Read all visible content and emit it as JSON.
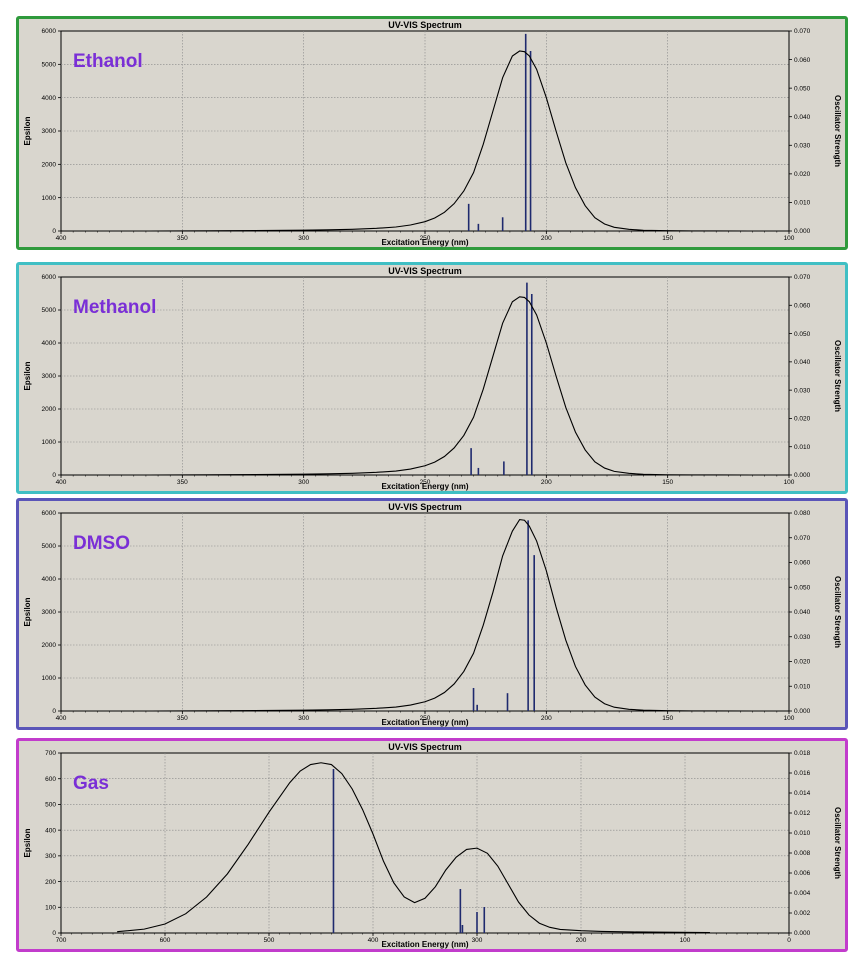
{
  "chart_data": [
    {
      "type": "line",
      "title": "UV-VIS Spectrum",
      "annotation": "Ethanol",
      "xlabel": "Excitation Energy (nm)",
      "ylabel": "Epsilon",
      "y2label": "Oscillator Strength",
      "xlim": [
        400,
        100
      ],
      "ylim": [
        0,
        6000
      ],
      "y2lim": [
        0,
        0.07
      ],
      "xticks": [
        "400",
        "350",
        "300",
        "250",
        "200",
        "150",
        "100"
      ],
      "yticks": [
        "0",
        "1000",
        "2000",
        "3000",
        "4000",
        "5000",
        "6000"
      ],
      "y2ticks": [
        "0.000",
        "0.010",
        "0.020",
        "0.030",
        "0.040",
        "0.050",
        "0.060",
        "0.070"
      ],
      "grid": true,
      "border_color": "#2f9a3c",
      "annotation_color": "#7a2fd6",
      "series": [
        {
          "x": [
            364.0,
            340.0,
            320.0,
            300.0,
            290.0,
            280.0,
            270.0,
            262.0,
            256.0,
            250.0,
            246.0,
            242.0,
            238.0,
            234.0,
            230.0,
            226.0,
            222.0,
            218.0,
            214.0,
            211.0,
            209.0,
            207.0,
            204.0,
            200.0,
            196.0,
            192.0,
            188.0,
            184.0,
            180.0,
            176.0,
            172.0,
            166.0,
            160.0,
            150.0,
            140.0,
            130.0,
            116.0
          ],
          "values": [
            0,
            5,
            12,
            25,
            35,
            50,
            80,
            120,
            180,
            280,
            390,
            560,
            820,
            1200,
            1750,
            2600,
            3600,
            4600,
            5250,
            5400,
            5380,
            5250,
            4850,
            4000,
            3000,
            2050,
            1300,
            760,
            400,
            210,
            110,
            50,
            22,
            8,
            4,
            2,
            0
          ]
        }
      ],
      "sticks": [
        {
          "x": 232.0,
          "f": 0.0095
        },
        {
          "x": 228.0,
          "f": 0.0025
        },
        {
          "x": 218.0,
          "f": 0.0048
        },
        {
          "x": 208.5,
          "f": 0.069
        },
        {
          "x": 206.5,
          "f": 0.063
        }
      ]
    },
    {
      "type": "line",
      "title": "UV-VIS Spectrum",
      "annotation": "Methanol",
      "xlabel": "Excitation Energy (nm)",
      "ylabel": "Epsilon",
      "y2label": "Oscillator Strength",
      "xlim": [
        400,
        100
      ],
      "ylim": [
        0,
        6000
      ],
      "y2lim": [
        0,
        0.07
      ],
      "xticks": [
        "400",
        "350",
        "300",
        "250",
        "200",
        "150",
        "100"
      ],
      "yticks": [
        "0",
        "1000",
        "2000",
        "3000",
        "4000",
        "5000",
        "6000"
      ],
      "y2ticks": [
        "0.000",
        "0.010",
        "0.020",
        "0.030",
        "0.040",
        "0.050",
        "0.060",
        "0.070"
      ],
      "grid": true,
      "border_color": "#40bfc4",
      "annotation_color": "#7a2fd6",
      "series": [
        {
          "x": [
            364.0,
            340.0,
            320.0,
            300.0,
            290.0,
            280.0,
            270.0,
            262.0,
            256.0,
            250.0,
            246.0,
            242.0,
            238.0,
            234.0,
            230.0,
            226.0,
            222.0,
            218.0,
            214.0,
            211.0,
            209.0,
            207.0,
            204.0,
            200.0,
            196.0,
            192.0,
            188.0,
            184.0,
            180.0,
            176.0,
            172.0,
            166.0,
            160.0,
            150.0,
            140.0,
            130.0,
            115.0
          ],
          "values": [
            0,
            5,
            12,
            25,
            35,
            50,
            80,
            120,
            180,
            280,
            390,
            560,
            820,
            1200,
            1750,
            2600,
            3600,
            4600,
            5250,
            5400,
            5380,
            5250,
            4850,
            4000,
            3000,
            2050,
            1300,
            760,
            400,
            210,
            110,
            50,
            22,
            8,
            4,
            2,
            0
          ]
        }
      ],
      "sticks": [
        {
          "x": 231.0,
          "f": 0.0095
        },
        {
          "x": 228.0,
          "f": 0.0025
        },
        {
          "x": 217.5,
          "f": 0.0048
        },
        {
          "x": 208.0,
          "f": 0.068
        },
        {
          "x": 206.0,
          "f": 0.064
        }
      ]
    },
    {
      "type": "line",
      "title": "UV-VIS Spectrum",
      "annotation": "DMSO",
      "xlabel": "Excitation Energy (nm)",
      "ylabel": "Epsilon",
      "y2label": "Oscillator Strength",
      "xlim": [
        400,
        100
      ],
      "ylim": [
        0,
        6000
      ],
      "y2lim": [
        0,
        0.08
      ],
      "xticks": [
        "400",
        "350",
        "300",
        "250",
        "200",
        "150",
        "100"
      ],
      "yticks": [
        "0",
        "1000",
        "2000",
        "3000",
        "4000",
        "5000",
        "6000"
      ],
      "y2ticks": [
        "0.000",
        "0.010",
        "0.020",
        "0.030",
        "0.040",
        "0.050",
        "0.060",
        "0.070",
        "0.080"
      ],
      "grid": true,
      "border_color": "#5a55b8",
      "annotation_color": "#7a2fd6",
      "series": [
        {
          "x": [
            363.0,
            340.0,
            320.0,
            300.0,
            290.0,
            280.0,
            270.0,
            262.0,
            256.0,
            250.0,
            246.0,
            242.0,
            238.0,
            234.0,
            230.0,
            226.0,
            222.0,
            218.0,
            214.0,
            211.0,
            209.0,
            207.0,
            204.0,
            200.0,
            196.0,
            192.0,
            188.0,
            184.0,
            180.0,
            176.0,
            172.0,
            166.0,
            160.0,
            150.0,
            140.0,
            130.0,
            114.0
          ],
          "values": [
            0,
            5,
            12,
            25,
            35,
            50,
            80,
            120,
            180,
            280,
            390,
            560,
            820,
            1200,
            1750,
            2600,
            3600,
            4700,
            5450,
            5800,
            5780,
            5600,
            5150,
            4250,
            3150,
            2150,
            1350,
            790,
            420,
            220,
            115,
            52,
            24,
            9,
            4,
            2,
            0
          ]
        }
      ],
      "sticks": [
        {
          "x": 230.0,
          "f": 0.0093
        },
        {
          "x": 228.5,
          "f": 0.0025
        },
        {
          "x": 216.0,
          "f": 0.0072
        },
        {
          "x": 207.5,
          "f": 0.077
        },
        {
          "x": 205.0,
          "f": 0.063
        }
      ]
    },
    {
      "type": "line",
      "title": "UV-VIS Spectrum",
      "annotation": "Gas",
      "xlabel": "Excitation Energy (nm)",
      "ylabel": "Epsilon",
      "y2label": "Oscillator Strength",
      "xlim": [
        700,
        0
      ],
      "ylim": [
        0,
        700
      ],
      "y2lim": [
        0,
        0.018
      ],
      "xticks": [
        "700",
        "600",
        "500",
        "400",
        "300",
        "200",
        "100",
        "0"
      ],
      "yticks": [
        "0",
        "100",
        "200",
        "300",
        "400",
        "500",
        "600",
        "700"
      ],
      "y2ticks": [
        "0.000",
        "0.002",
        "0.004",
        "0.006",
        "0.008",
        "0.010",
        "0.012",
        "0.014",
        "0.016",
        "0.018"
      ],
      "grid": true,
      "border_color": "#c23ccc",
      "annotation_color": "#7a2fd6",
      "series": [
        {
          "x": [
            646.0,
            620.0,
            600.0,
            580.0,
            560.0,
            540.0,
            520.0,
            500.0,
            480.0,
            470.0,
            460.0,
            450.0,
            440.0,
            430.0,
            420.0,
            410.0,
            400.0,
            390.0,
            380.0,
            370.0,
            360.0,
            350.0,
            340.0,
            330.0,
            320.0,
            310.0,
            300.0,
            290.0,
            280.0,
            270.0,
            260.0,
            250.0,
            240.0,
            230.0,
            220.0,
            200.0,
            180.0,
            150.0,
            120.0,
            76.0
          ],
          "values": [
            5,
            15,
            35,
            75,
            140,
            230,
            345,
            470,
            585,
            630,
            655,
            662,
            655,
            620,
            560,
            480,
            385,
            280,
            195,
            140,
            118,
            135,
            180,
            245,
            295,
            325,
            330,
            310,
            260,
            190,
            120,
            70,
            38,
            22,
            14,
            9,
            6,
            4,
            3,
            2
          ]
        }
      ],
      "sticks": [
        {
          "x": 438.0,
          "f": 0.0164
        },
        {
          "x": 316.0,
          "f": 0.0044
        },
        {
          "x": 314.0,
          "f": 0.0008
        },
        {
          "x": 300.0,
          "f": 0.0021
        },
        {
          "x": 293.0,
          "f": 0.0026
        }
      ]
    }
  ]
}
